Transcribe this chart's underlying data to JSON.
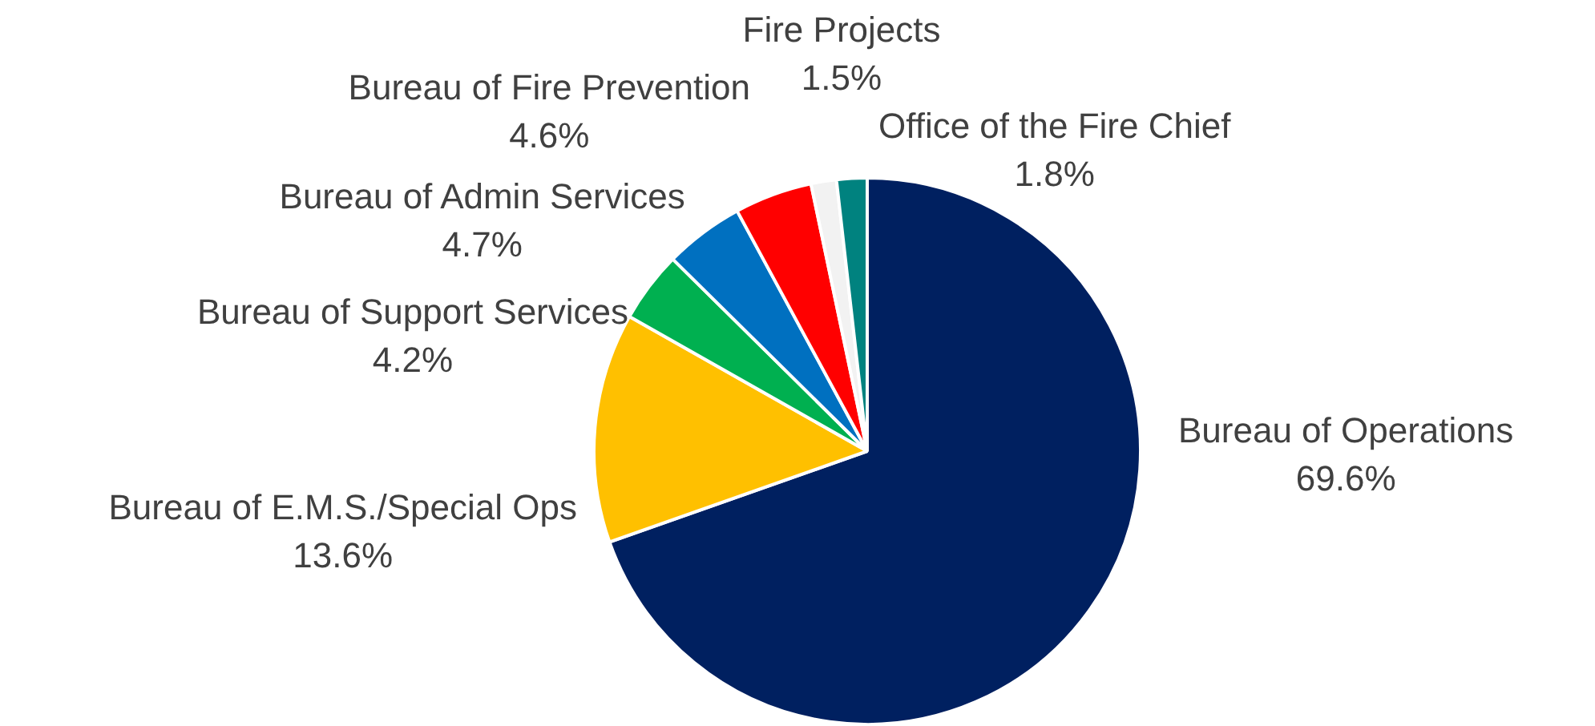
{
  "chart_data": {
    "type": "pie",
    "categories": [
      "Bureau of Operations",
      "Bureau of E.M.S./Special Ops",
      "Bureau of Support Services",
      "Bureau of Admin Services",
      "Bureau of Fire Prevention",
      "Fire Projects",
      "Office of the Fire Chief"
    ],
    "values": [
      69.6,
      13.6,
      4.2,
      4.7,
      4.6,
      1.5,
      1.8
    ],
    "value_labels": [
      "69.6%",
      "13.6%",
      "4.2%",
      "4.7%",
      "4.6%",
      "1.5%",
      "1.8%"
    ],
    "colors": [
      "#002060",
      "#ffc000",
      "#00b050",
      "#0070c0",
      "#ff0000",
      "#f2f2f2",
      "#00827f"
    ],
    "legend": false
  }
}
